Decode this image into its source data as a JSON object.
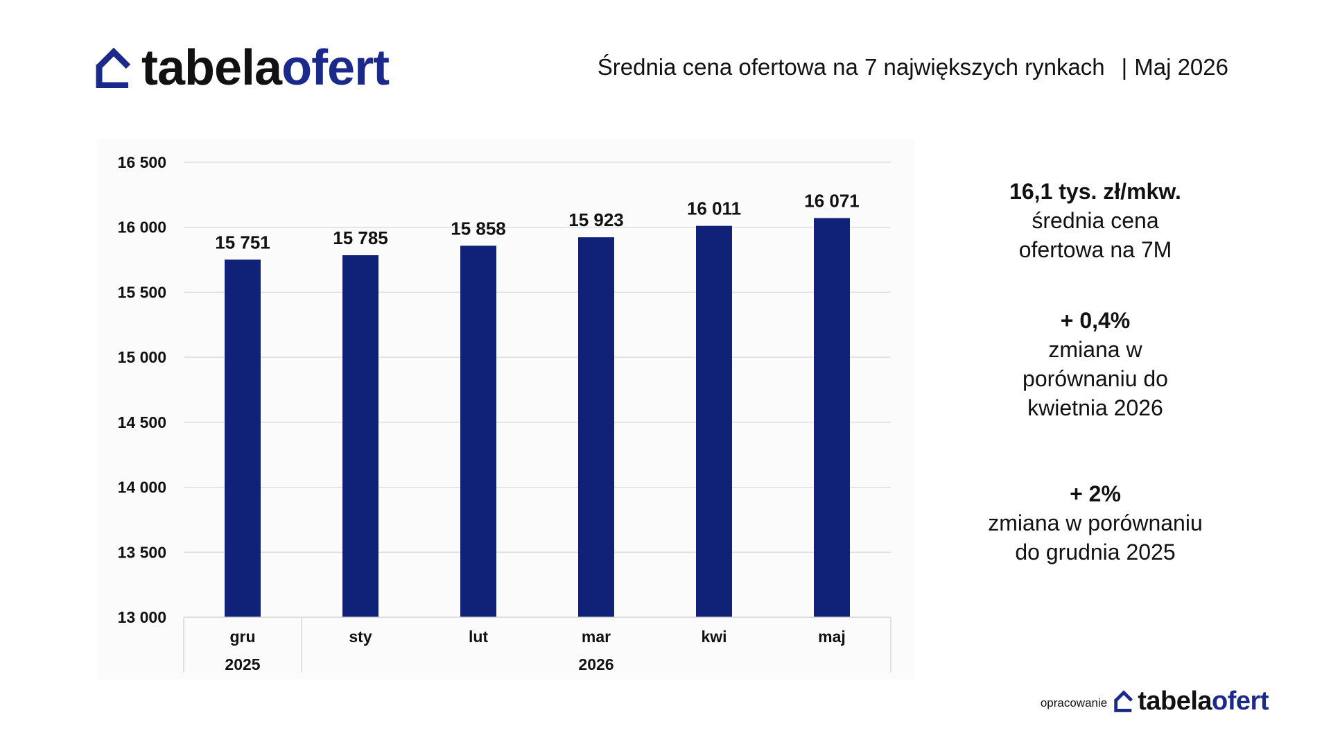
{
  "header": {
    "logo_part1": "tabela",
    "logo_part2": "ofert",
    "title": "Średnia cena ofertowa na 7 największych rynkach",
    "separator": "|",
    "period": "Maj  2026"
  },
  "stats": [
    {
      "value": "16,1 tys. zł/mkw.",
      "line1": "średnia cena",
      "line2": "ofertowa na 7M"
    },
    {
      "value": "+ 0,4%",
      "line1": "zmiana w",
      "line2": "porównaniu do",
      "line3": "kwietnia 2026"
    },
    {
      "value": "+ 2%",
      "line1": "zmiana w porównaniu",
      "line2": "do grudnia 2025"
    }
  ],
  "footer": {
    "label": "opracowanie",
    "logo_part1": "tabela",
    "logo_part2": "ofert"
  },
  "colors": {
    "bar": "#0f2278",
    "brand_dark": "#111111",
    "brand_blue": "#1b2a8a"
  },
  "chart_data": {
    "type": "bar",
    "categories": [
      "gru",
      "sty",
      "lut",
      "mar",
      "kwi",
      "maj"
    ],
    "values": [
      15751,
      15785,
      15858,
      15923,
      16011,
      16071
    ],
    "value_labels": [
      "15 751",
      "15 785",
      "15 858",
      "15 923",
      "16 011",
      "16 071"
    ],
    "year_groups": [
      {
        "label": "2025",
        "from": 0,
        "to": 0
      },
      {
        "label": "2026",
        "from": 1,
        "to": 5
      }
    ],
    "ylim": [
      13000,
      16500
    ],
    "yticks": [
      13000,
      13500,
      14000,
      14500,
      15000,
      15500,
      16000,
      16500
    ],
    "ytick_labels": [
      "13 000",
      "13 500",
      "14 000",
      "14 500",
      "15 000",
      "15 500",
      "16 000",
      "16 500"
    ],
    "grid": true,
    "legend": "none"
  }
}
